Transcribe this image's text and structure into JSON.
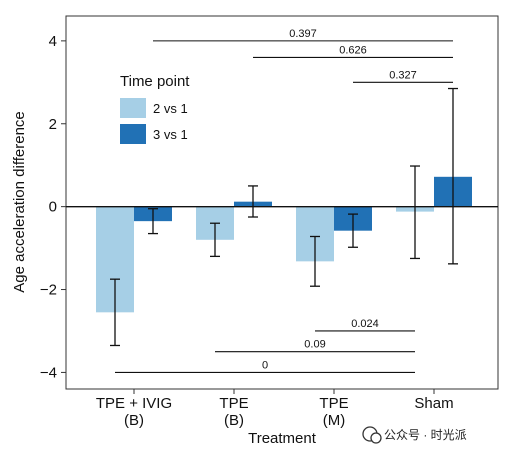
{
  "chart_data": {
    "type": "bar",
    "ylabel": "Age acceleration difference",
    "xlabel": "Treatment",
    "ylim": [
      -4.4,
      4.6
    ],
    "y_ticks": [
      -4,
      -2,
      0,
      2,
      4
    ],
    "categories": [
      {
        "line1": "TPE + IVIG",
        "line2": "(B)"
      },
      {
        "line1": "TPE",
        "line2": "(B)"
      },
      {
        "line1": "TPE",
        "line2": "(M)"
      },
      {
        "line1": "Sham",
        "line2": ""
      }
    ],
    "legend": {
      "title": "Time point",
      "position": "top-left"
    },
    "series": [
      {
        "name": "2 vs 1",
        "color": "#a6cfe6",
        "values": [
          -2.55,
          -0.8,
          -1.32,
          -0.12
        ],
        "err_low": [
          -3.35,
          -1.2,
          -1.92,
          -1.25
        ],
        "err_high": [
          -1.75,
          -0.4,
          -0.72,
          0.98
        ]
      },
      {
        "name": "3 vs 1",
        "color": "#2171b5",
        "values": [
          -0.35,
          0.12,
          -0.58,
          0.72
        ],
        "err_low": [
          -0.65,
          -0.25,
          -0.98,
          -1.38
        ],
        "err_high": [
          -0.05,
          0.5,
          -0.18,
          2.85
        ]
      }
    ],
    "comparisons": [
      {
        "label": "0.397",
        "from": [
          0,
          1
        ],
        "to": [
          3,
          1
        ],
        "y": 4.0
      },
      {
        "label": "0.626",
        "from": [
          1,
          1
        ],
        "to": [
          3,
          1
        ],
        "y": 3.6
      },
      {
        "label": "0.327",
        "from": [
          2,
          1
        ],
        "to": [
          3,
          1
        ],
        "y": 3.0
      },
      {
        "label": "0.024",
        "from": [
          2,
          0
        ],
        "to": [
          3,
          0
        ],
        "y": -3.0
      },
      {
        "label": "0.09",
        "from": [
          1,
          0
        ],
        "to": [
          3,
          0
        ],
        "y": -3.5
      },
      {
        "label": "0",
        "from": [
          0,
          0
        ],
        "to": [
          3,
          0
        ],
        "y": -4.0
      }
    ]
  },
  "watermark": "公众号 · 时光派"
}
